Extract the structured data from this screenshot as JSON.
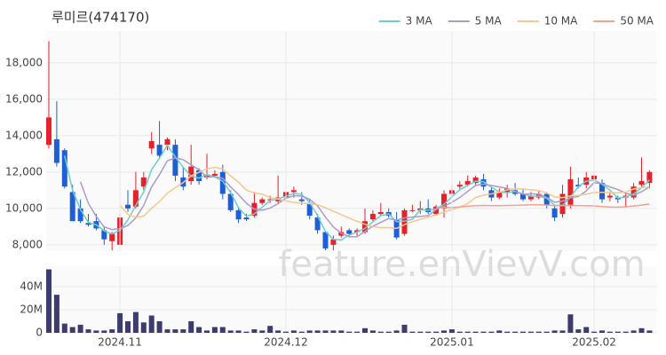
{
  "chart_data": [
    {
      "type": "candlestick",
      "title": "루미르(474170)",
      "watermark": "feature.enVievV.com",
      "up_color": "#e8202a",
      "down_color": "#1f5fd6",
      "grid": true,
      "ylim": [
        7650,
        19750
      ],
      "yticks": [
        {
          "value": 8000,
          "label": "8,000"
        },
        {
          "value": 10000,
          "label": "10,000"
        },
        {
          "value": 12000,
          "label": "12,000"
        },
        {
          "value": 14000,
          "label": "14,000"
        },
        {
          "value": 16000,
          "label": "16,000"
        },
        {
          "value": 18000,
          "label": "18,000"
        }
      ],
      "open": [
        13500,
        13800,
        13200,
        10900,
        10000,
        9200,
        9300,
        8800,
        8200,
        8000,
        10200,
        10100,
        11200,
        13300,
        13500,
        13500,
        13500,
        11700,
        11500,
        12100,
        11700,
        11800,
        12000,
        10800,
        9900,
        9500,
        9600,
        10300,
        10500,
        10400,
        10600,
        10900,
        10500,
        10300,
        9500,
        8700,
        8000,
        8500,
        8800,
        8700,
        8700,
        9400,
        9700,
        9800,
        9400,
        8600,
        9900,
        9900,
        10000,
        9700,
        10000,
        10800,
        11200,
        11300,
        11400,
        11600,
        11000,
        10600,
        10900,
        11000,
        10800,
        10500,
        10600,
        10800,
        10000,
        9700,
        10200,
        11300,
        11300,
        11600,
        11400,
        10600,
        10600,
        10600,
        10600,
        11300,
        11400
      ],
      "high": [
        19200,
        15900,
        13300,
        11300,
        10500,
        9700,
        9700,
        9000,
        8700,
        9700,
        11000,
        12000,
        12000,
        14200,
        14800,
        13900,
        13800,
        12300,
        13500,
        12200,
        13000,
        12100,
        12400,
        11000,
        10100,
        9700,
        10900,
        10600,
        10700,
        11800,
        11000,
        11200,
        10900,
        10500,
        9700,
        8700,
        8500,
        9000,
        8900,
        8900,
        10000,
        9900,
        10300,
        10000,
        9800,
        10000,
        10200,
        10400,
        10500,
        10200,
        11000,
        11300,
        11500,
        11800,
        11800,
        11900,
        11200,
        11100,
        11300,
        11400,
        11100,
        10900,
        11000,
        10900,
        10200,
        11300,
        12300,
        11700,
        12000,
        11900,
        11600,
        10900,
        10700,
        10800,
        11400,
        12800,
        12100
      ],
      "low": [
        13300,
        12300,
        11100,
        9300,
        9200,
        9000,
        8800,
        8000,
        7700,
        8000,
        9800,
        10000,
        11000,
        13000,
        12700,
        13200,
        11500,
        11000,
        11300,
        11300,
        11600,
        11700,
        10500,
        9800,
        9200,
        9300,
        9500,
        10200,
        10300,
        10300,
        10500,
        10600,
        10200,
        9400,
        8600,
        7700,
        7700,
        8400,
        8400,
        8500,
        8600,
        9300,
        9600,
        9500,
        8300,
        8500,
        9800,
        9700,
        9700,
        9600,
        9500,
        10600,
        11000,
        11200,
        11300,
        11000,
        10400,
        10500,
        10600,
        10700,
        10400,
        10400,
        10500,
        10000,
        9300,
        9500,
        10000,
        11100,
        11100,
        11400,
        10300,
        10400,
        10300,
        10100,
        10500,
        11200,
        11100
      ],
      "close": [
        15000,
        12500,
        11200,
        9300,
        9300,
        9100,
        8900,
        8300,
        8600,
        9500,
        10000,
        11000,
        11700,
        13700,
        12900,
        13800,
        11800,
        11200,
        12300,
        11500,
        11800,
        11900,
        10800,
        9900,
        9400,
        9400,
        10300,
        10500,
        10500,
        10600,
        10900,
        11000,
        10400,
        9600,
        8800,
        7800,
        8300,
        8700,
        8600,
        8800,
        9300,
        9700,
        9800,
        9600,
        8400,
        9900,
        9900,
        10000,
        9800,
        10100,
        10800,
        11000,
        11300,
        11500,
        11700,
        11200,
        10600,
        10900,
        11100,
        10800,
        10500,
        10700,
        10800,
        10200,
        9500,
        10800,
        11600,
        11200,
        11700,
        11800,
        10500,
        10700,
        10500,
        10700,
        11200,
        11500,
        12000
      ],
      "series": [
        {
          "name": "3 MA",
          "color": "#6ccfd0",
          "values": [
            null,
            null,
            12900,
            11000,
            9933,
            9233,
            9100,
            8767,
            8600,
            8800,
            9367,
            10167,
            10900,
            12133,
            12767,
            13467,
            12833,
            12267,
            11767,
            11667,
            11867,
            11733,
            11500,
            10867,
            10033,
            9567,
            9700,
            10067,
            10433,
            10533,
            10667,
            10833,
            10767,
            10333,
            9600,
            8733,
            8300,
            8267,
            8533,
            8700,
            8900,
            9267,
            9600,
            9700,
            9267,
            9300,
            9400,
            9933,
            9900,
            9967,
            10233,
            10633,
            11033,
            11267,
            11500,
            11467,
            11167,
            10900,
            10867,
            10933,
            10800,
            10667,
            10667,
            10567,
            10167,
            10167,
            10633,
            11200,
            11500,
            11567,
            11333,
            11000,
            10567,
            10633,
            10800,
            11133,
            11567
          ]
        },
        {
          "name": "5 MA",
          "color": "#a99ccb",
          "values": [
            null,
            null,
            null,
            null,
            11460,
            10280,
            9560,
            8980,
            8840,
            8880,
            9060,
            9480,
            10160,
            11180,
            11860,
            12620,
            12780,
            12680,
            12400,
            12120,
            11720,
            11740,
            11660,
            11180,
            10760,
            10280,
            9960,
            9900,
            10020,
            10260,
            10560,
            10700,
            10680,
            10500,
            10140,
            9520,
            8980,
            8640,
            8440,
            8440,
            8740,
            9020,
            9240,
            9440,
            9360,
            9480,
            9520,
            9560,
            9600,
            9940,
            10120,
            10340,
            10600,
            10940,
            11260,
            11340,
            11260,
            11180,
            11100,
            10920,
            10780,
            10800,
            10780,
            10600,
            10340,
            10400,
            10580,
            10660,
            10960,
            11420,
            11360,
            11180,
            11040,
            10840,
            10720,
            10920,
            11180
          ]
        },
        {
          "name": "10 MA",
          "color": "#f3c98e",
          "values": [
            null,
            null,
            null,
            null,
            null,
            null,
            null,
            null,
            null,
            10170,
            9670,
            9520,
            9570,
            10010,
            10370,
            10840,
            11130,
            11420,
            11790,
            11990,
            12170,
            12260,
            12170,
            11790,
            11440,
            11000,
            10850,
            10780,
            10600,
            10510,
            10420,
            10330,
            10290,
            10260,
            10200,
            10040,
            9840,
            9660,
            9470,
            9290,
            9130,
            9000,
            8940,
            8940,
            8900,
            9110,
            9270,
            9400,
            9520,
            9650,
            9800,
            9930,
            10080,
            10270,
            10600,
            10730,
            10800,
            10890,
            11020,
            11090,
            11060,
            11030,
            10980,
            10850,
            10630,
            10590,
            10690,
            10720,
            10780,
            10880,
            10880,
            10880,
            10850,
            10900,
            11070,
            11140,
            11180
          ]
        },
        {
          "name": "50 MA",
          "color": "#f4a18f",
          "values": [
            null,
            null,
            null,
            null,
            null,
            null,
            null,
            null,
            null,
            null,
            null,
            null,
            null,
            null,
            null,
            null,
            null,
            null,
            null,
            null,
            null,
            null,
            null,
            null,
            null,
            null,
            null,
            null,
            null,
            null,
            null,
            null,
            null,
            null,
            null,
            null,
            null,
            null,
            null,
            null,
            null,
            null,
            null,
            null,
            null,
            null,
            null,
            null,
            null,
            10050,
            10060,
            10050,
            10080,
            10120,
            10150,
            10160,
            10150,
            10150,
            10160,
            10170,
            10180,
            10200,
            10200,
            10180,
            10150,
            10150,
            10160,
            10150,
            10150,
            10140,
            10100,
            10080,
            10070,
            10090,
            10130,
            10180,
            10250
          ]
        }
      ]
    },
    {
      "type": "bar",
      "color": "#3c3c6e",
      "grid": true,
      "ylim": [
        0,
        57700000
      ],
      "yticks": [
        0,
        {
          "value": 20000000,
          "label": "20M"
        },
        {
          "value": 40000000,
          "label": "40M"
        }
      ],
      "xticks": [
        {
          "value": 9,
          "label": "2024.11"
        },
        {
          "value": 30,
          "label": "2024.12"
        },
        {
          "value": 51,
          "label": "2025.01"
        },
        {
          "value": 69,
          "label": "2025.02"
        }
      ],
      "values": [
        55000000,
        33000000,
        8000000,
        5000000,
        7000000,
        3000000,
        2000000,
        2000000,
        3000000,
        17000000,
        10000000,
        18000000,
        9000000,
        15000000,
        10000000,
        3000000,
        3000000,
        3000000,
        10000000,
        5000000,
        2000000,
        5000000,
        5000000,
        2000000,
        2000000,
        1000000,
        3000000,
        2000000,
        6000000,
        2000000,
        1000000,
        2000000,
        1000000,
        2000000,
        2000000,
        2000000,
        2000000,
        2000000,
        1000000,
        1000000,
        4000000,
        2000000,
        1000000,
        1000000,
        2000000,
        7000000,
        1000000,
        1000000,
        1000000,
        1000000,
        2000000,
        3000000,
        1000000,
        1000000,
        1000000,
        1000000,
        1000000,
        2000000,
        1000000,
        1000000,
        1000000,
        1000000,
        1000000,
        1000000,
        2000000,
        2000000,
        16000000,
        3000000,
        5000000,
        1000000,
        2000000,
        1000000,
        1000000,
        1000000,
        2000000,
        4000000,
        2000000
      ]
    }
  ]
}
